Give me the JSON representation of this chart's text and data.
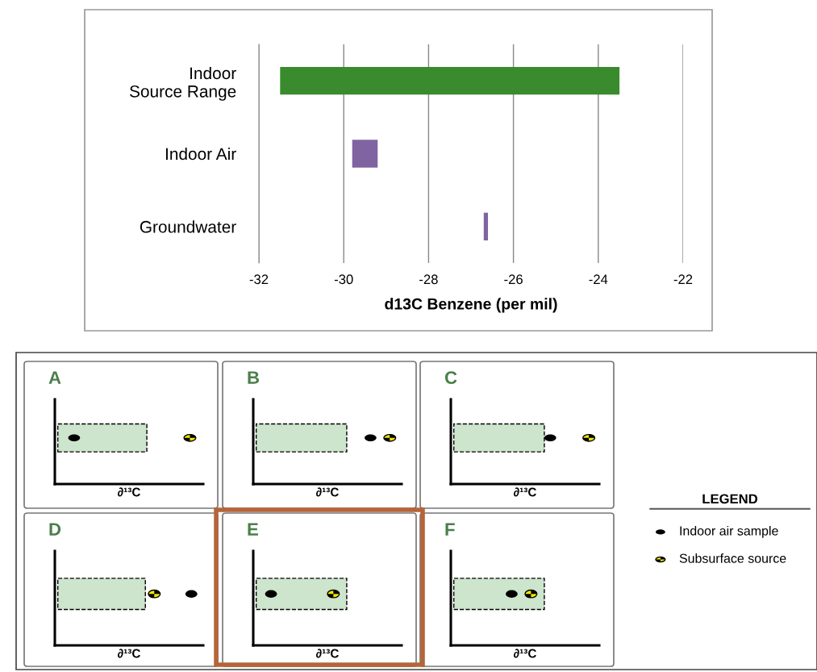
{
  "chart_data": [
    {
      "type": "bar",
      "orientation": "horizontal",
      "categories": [
        "Indoor Source Range",
        "Indoor Air",
        "Groundwater"
      ],
      "base": [
        -31.5,
        -29.8,
        -26.7
      ],
      "values": [
        8,
        0.6,
        0.1
      ],
      "colors": [
        "#3a8a2e",
        "#8064a2",
        "#8064a2"
      ],
      "xlim": [
        -32,
        -22
      ],
      "xticks": [
        -32,
        -30,
        -28,
        -26,
        -24,
        -22
      ],
      "xlabel": "d13C Benzene (per mil)",
      "grid": "x"
    },
    {
      "type": "other",
      "title": "A",
      "xlabel": "∂¹³C"
    },
    {
      "type": "other",
      "title": "B",
      "xlabel": "∂¹³C"
    },
    {
      "type": "other",
      "title": "C",
      "xlabel": "∂¹³C"
    },
    {
      "type": "other",
      "title": "D",
      "xlabel": "∂¹³C"
    },
    {
      "type": "other",
      "title": "E",
      "xlabel": "∂¹³C"
    },
    {
      "type": "other",
      "title": "F",
      "xlabel": "∂¹³C"
    },
    {
      "type": "other",
      "title": "LEGEND",
      "annotations": [
        "Indoor air sample",
        "Subsurface source"
      ]
    }
  ]
}
